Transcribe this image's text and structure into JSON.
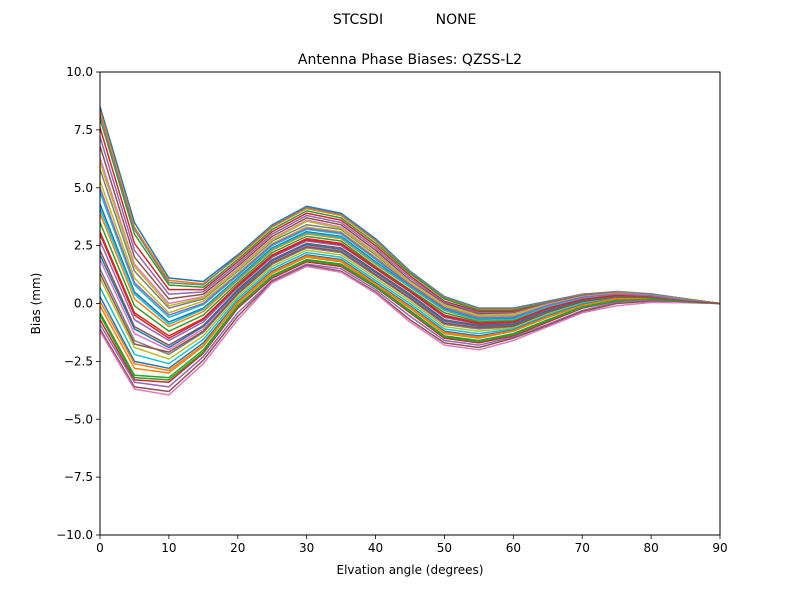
{
  "figure": {
    "suptitle_left": "STCSDI",
    "suptitle_right": "NONE"
  },
  "chart_data": {
    "type": "line",
    "title": "Antenna Phase Biases: QZSS-L2",
    "xlabel": "Elvation angle (degrees)",
    "ylabel": "Bias (mm)",
    "xlim": [
      0,
      90
    ],
    "ylim": [
      -10,
      10
    ],
    "grid": false,
    "legend": "none",
    "xticks": [
      0,
      10,
      20,
      30,
      40,
      50,
      60,
      70,
      80,
      90
    ],
    "xtick_labels": [
      "0",
      "10",
      "20",
      "30",
      "40",
      "50",
      "60",
      "70",
      "80",
      "90"
    ],
    "yticks": [
      10,
      7.5,
      5,
      2.5,
      0,
      -2.5,
      -5,
      -7.5,
      -10
    ],
    "ytick_labels": [
      "10.0",
      "7.5",
      "5.0",
      "2.5",
      "0.0",
      "−2.5",
      "−5.0",
      "−7.5",
      "−10.0"
    ],
    "x": [
      0,
      5,
      10,
      15,
      20,
      25,
      30,
      35,
      40,
      45,
      50,
      55,
      60,
      65,
      70,
      75,
      80,
      85,
      90
    ],
    "colors": [
      "#1f77b4",
      "#ff7f0e",
      "#2ca02c",
      "#d62728",
      "#9467bd",
      "#8c564b",
      "#e377c2",
      "#7f7f7f",
      "#bcbd22",
      "#17becf"
    ],
    "series": [
      {
        "values": [
          8.5,
          3.5,
          1.1,
          0.95,
          2.1,
          3.4,
          4.2,
          3.9,
          2.8,
          1.4,
          0.3,
          -0.2,
          -0.2,
          0.1,
          0.4,
          0.5,
          0.4,
          0.2,
          0.0
        ]
      },
      {
        "values": [
          8.3,
          3.3,
          1.0,
          0.85,
          2.0,
          3.3,
          4.1,
          3.8,
          2.7,
          1.35,
          0.25,
          -0.25,
          -0.25,
          0.05,
          0.38,
          0.5,
          0.4,
          0.2,
          0.0
        ]
      },
      {
        "values": [
          8.0,
          3.0,
          0.8,
          0.7,
          1.9,
          3.2,
          4.0,
          3.7,
          2.6,
          1.3,
          0.2,
          -0.3,
          -0.3,
          0.05,
          0.38,
          0.48,
          0.4,
          0.2,
          0.0
        ]
      },
      {
        "values": [
          7.6,
          2.6,
          0.6,
          0.6,
          1.8,
          3.1,
          3.9,
          3.6,
          2.5,
          1.2,
          0.1,
          -0.35,
          -0.35,
          0.0,
          0.35,
          0.47,
          0.38,
          0.18,
          0.0
        ]
      },
      {
        "values": [
          7.2,
          2.3,
          0.4,
          0.5,
          1.7,
          3.0,
          3.8,
          3.5,
          2.4,
          1.1,
          0.05,
          -0.4,
          -0.4,
          0.0,
          0.33,
          0.46,
          0.37,
          0.17,
          0.0
        ]
      },
      {
        "values": [
          6.8,
          2.0,
          0.2,
          0.4,
          1.6,
          2.9,
          3.7,
          3.4,
          2.3,
          1.0,
          0.0,
          -0.45,
          -0.42,
          -0.02,
          0.32,
          0.45,
          0.36,
          0.16,
          0.0
        ]
      },
      {
        "values": [
          6.3,
          1.7,
          0.0,
          0.3,
          1.5,
          2.8,
          3.6,
          3.3,
          2.2,
          0.95,
          -0.05,
          -0.5,
          -0.45,
          -0.03,
          0.3,
          0.44,
          0.35,
          0.16,
          0.0
        ]
      },
      {
        "values": [
          5.8,
          1.4,
          -0.2,
          0.2,
          1.4,
          2.7,
          3.4,
          3.2,
          2.1,
          0.9,
          -0.1,
          -0.55,
          -0.5,
          -0.05,
          0.3,
          0.43,
          0.35,
          0.15,
          0.0
        ]
      },
      {
        "values": [
          5.3,
          1.1,
          -0.4,
          0.1,
          1.3,
          2.6,
          3.3,
          3.1,
          2.0,
          0.85,
          -0.15,
          -0.6,
          -0.55,
          -0.07,
          0.28,
          0.42,
          0.34,
          0.15,
          0.0
        ]
      },
      {
        "values": [
          4.8,
          0.8,
          -0.6,
          -0.05,
          1.2,
          2.5,
          3.2,
          3.0,
          1.9,
          0.8,
          -0.2,
          -0.65,
          -0.6,
          -0.1,
          0.26,
          0.41,
          0.33,
          0.14,
          0.0
        ]
      },
      {
        "values": [
          4.3,
          0.5,
          -0.8,
          -0.2,
          1.1,
          2.4,
          3.1,
          2.9,
          1.8,
          0.75,
          -0.25,
          -0.7,
          -0.65,
          -0.12,
          0.25,
          0.4,
          0.33,
          0.14,
          0.0
        ]
      },
      {
        "values": [
          3.9,
          0.2,
          -1.0,
          -0.35,
          1.0,
          2.3,
          3.0,
          2.8,
          1.7,
          0.7,
          -0.3,
          -0.75,
          -0.7,
          -0.15,
          0.22,
          0.39,
          0.32,
          0.13,
          0.0
        ]
      },
      {
        "values": [
          3.5,
          -0.1,
          -1.2,
          -0.5,
          0.9,
          2.2,
          2.9,
          2.7,
          1.6,
          0.6,
          -0.4,
          -0.8,
          -0.75,
          -0.18,
          0.2,
          0.38,
          0.31,
          0.13,
          0.0
        ]
      },
      {
        "values": [
          3.1,
          -0.4,
          -1.4,
          -0.65,
          0.8,
          2.1,
          2.8,
          2.6,
          1.55,
          0.55,
          -0.5,
          -0.85,
          -0.8,
          -0.2,
          0.18,
          0.36,
          0.3,
          0.12,
          0.0
        ]
      },
      {
        "values": [
          2.7,
          -0.7,
          -1.6,
          -0.8,
          0.7,
          2.0,
          2.7,
          2.5,
          1.5,
          0.5,
          -0.6,
          -0.9,
          -0.85,
          -0.25,
          0.15,
          0.34,
          0.29,
          0.12,
          0.0
        ]
      },
      {
        "values": [
          2.3,
          -1.0,
          -1.8,
          -0.95,
          0.6,
          1.9,
          2.6,
          2.4,
          1.4,
          0.4,
          -0.7,
          -0.95,
          -0.9,
          -0.3,
          0.12,
          0.32,
          0.28,
          0.11,
          0.0
        ]
      },
      {
        "values": [
          1.9,
          -1.3,
          -2.0,
          -1.1,
          0.5,
          1.8,
          2.5,
          2.3,
          1.3,
          0.3,
          -0.8,
          -1.0,
          -0.95,
          -0.35,
          0.1,
          0.3,
          0.27,
          0.11,
          0.0
        ]
      },
      {
        "values": [
          1.5,
          -1.6,
          -2.2,
          -1.25,
          0.4,
          1.7,
          2.4,
          2.2,
          1.2,
          0.2,
          -0.9,
          -1.1,
          -1.0,
          -0.4,
          0.07,
          0.28,
          0.26,
          0.1,
          0.0
        ]
      },
      {
        "values": [
          1.1,
          -1.9,
          -2.4,
          -1.4,
          0.3,
          1.6,
          2.3,
          2.1,
          1.1,
          0.1,
          -1.0,
          -1.2,
          -1.05,
          -0.45,
          0.04,
          0.26,
          0.25,
          0.1,
          0.0
        ]
      },
      {
        "values": [
          0.7,
          -2.2,
          -2.6,
          -1.55,
          0.2,
          1.5,
          2.2,
          2.0,
          1.0,
          0.0,
          -1.1,
          -1.3,
          -1.1,
          -0.5,
          0.0,
          0.24,
          0.24,
          0.09,
          0.0
        ]
      },
      {
        "values": [
          0.3,
          -2.5,
          -2.8,
          -1.7,
          0.1,
          1.4,
          2.1,
          1.9,
          0.9,
          -0.1,
          -1.2,
          -1.4,
          -1.15,
          -0.55,
          -0.05,
          0.22,
          0.23,
          0.09,
          0.0
        ]
      },
      {
        "values": [
          -0.1,
          -2.8,
          -3.0,
          -1.85,
          0.0,
          1.3,
          2.0,
          1.8,
          0.8,
          -0.2,
          -1.3,
          -1.5,
          -1.2,
          -0.6,
          -0.1,
          0.2,
          0.22,
          0.08,
          0.0
        ]
      },
      {
        "values": [
          -0.4,
          -3.1,
          -3.2,
          -2.0,
          -0.1,
          1.2,
          1.9,
          1.7,
          0.75,
          -0.3,
          -1.4,
          -1.6,
          -1.3,
          -0.7,
          -0.15,
          0.15,
          0.2,
          0.08,
          0.0
        ]
      },
      {
        "values": [
          -0.7,
          -3.3,
          -3.4,
          -2.15,
          -0.2,
          1.1,
          1.8,
          1.6,
          0.7,
          -0.4,
          -1.5,
          -1.7,
          -1.4,
          -0.8,
          -0.2,
          0.1,
          0.18,
          0.07,
          0.0
        ]
      },
      {
        "values": [
          -0.9,
          -3.4,
          -3.6,
          -2.3,
          -0.4,
          1.0,
          1.7,
          1.5,
          0.6,
          -0.55,
          -1.6,
          -1.8,
          -1.45,
          -0.9,
          -0.3,
          0.05,
          0.15,
          0.06,
          0.0
        ]
      },
      {
        "values": [
          -1.1,
          -3.6,
          -3.8,
          -2.45,
          -0.55,
          0.95,
          1.65,
          1.4,
          0.5,
          -0.7,
          -1.7,
          -1.9,
          -1.5,
          -0.95,
          -0.35,
          0.0,
          0.1,
          0.05,
          0.0
        ]
      },
      {
        "values": [
          -1.2,
          -3.7,
          -3.95,
          -2.6,
          -0.7,
          0.9,
          1.6,
          1.35,
          0.45,
          -0.8,
          -1.8,
          -2.0,
          -1.6,
          -1.0,
          -0.4,
          -0.1,
          0.05,
          0.03,
          0.0
        ]
      },
      {
        "values": [
          8.1,
          3.2,
          0.9,
          0.8,
          2.05,
          3.35,
          4.15,
          3.85,
          2.75,
          1.38,
          0.28,
          -0.22,
          -0.22,
          0.08,
          0.4,
          0.52,
          0.42,
          0.2,
          0.0
        ]
      },
      {
        "values": [
          6.1,
          1.6,
          -0.1,
          0.25,
          1.45,
          2.75,
          3.55,
          3.25,
          2.15,
          0.92,
          -0.08,
          -0.52,
          -0.48,
          -0.04,
          0.3,
          0.44,
          0.35,
          0.15,
          0.0
        ]
      },
      {
        "values": [
          4.1,
          0.4,
          -0.9,
          -0.25,
          1.05,
          2.35,
          3.05,
          2.85,
          1.75,
          0.72,
          -0.28,
          -0.72,
          -0.68,
          -0.14,
          0.23,
          0.39,
          0.32,
          0.13,
          0.0
        ]
      },
      {
        "values": [
          2.1,
          -1.1,
          -1.9,
          -1.0,
          0.55,
          1.85,
          2.55,
          2.35,
          1.35,
          0.35,
          -0.75,
          -0.98,
          -0.92,
          -0.32,
          0.11,
          0.31,
          0.27,
          0.11,
          0.0
        ]
      },
      {
        "values": [
          0.1,
          -2.6,
          -2.9,
          -1.8,
          0.05,
          1.35,
          2.05,
          1.85,
          0.85,
          -0.15,
          -1.25,
          -1.45,
          -1.18,
          -0.58,
          -0.08,
          0.21,
          0.22,
          0.08,
          0.0
        ]
      },
      {
        "values": [
          -0.5,
          -3.2,
          -3.3,
          -2.1,
          -0.15,
          1.15,
          1.85,
          1.65,
          0.72,
          -0.35,
          -1.45,
          -1.65,
          -1.35,
          -0.75,
          -0.18,
          0.12,
          0.19,
          0.07,
          0.0
        ]
      },
      {
        "values": [
          3.0,
          -0.5,
          -1.5,
          -0.7,
          0.75,
          2.05,
          2.75,
          2.55,
          1.52,
          0.52,
          -0.55,
          -0.88,
          -0.82,
          -0.22,
          0.17,
          0.35,
          0.3,
          0.12,
          0.0
        ]
      },
      {
        "values": [
          5.0,
          0.9,
          -0.5,
          0.0,
          1.25,
          2.55,
          3.25,
          3.05,
          1.95,
          0.82,
          -0.18,
          -0.62,
          -0.58,
          -0.08,
          0.27,
          0.41,
          0.34,
          0.14,
          0.0
        ]
      },
      {
        "values": [
          1.3,
          -1.75,
          -2.1,
          -1.2,
          0.45,
          1.75,
          2.45,
          2.25,
          1.25,
          0.25,
          -0.85,
          -1.05,
          -0.98,
          -0.38,
          0.08,
          0.29,
          0.26,
          0.1,
          0.0
        ]
      }
    ]
  }
}
